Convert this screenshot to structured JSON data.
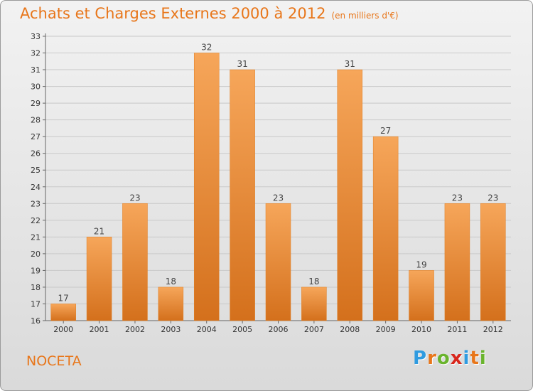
{
  "header": {
    "title": "Achats et Charges Externes 2000 à 2012",
    "unit": "(en milliers d'€)"
  },
  "footer": {
    "commune": "NOCETA",
    "logo_letters": [
      "P",
      "r",
      "o",
      "x",
      "i",
      "t",
      "i"
    ],
    "logo_colors": [
      "#2f9be0",
      "#e8761a",
      "#6ab42d",
      "#d8261c",
      "#2f9be0",
      "#e8761a",
      "#6ab42d"
    ]
  },
  "colors": {
    "accent": "#e8761a",
    "bar_top": "#f6a65a",
    "bar_bottom": "#d4701c",
    "grid": "#c9c9c9",
    "axis": "#666666"
  },
  "chart_data": {
    "type": "bar",
    "title": "Achats et Charges Externes 2000 à 2012",
    "subtitle": "(en milliers d'€)",
    "xlabel": "",
    "ylabel": "",
    "categories": [
      "2000",
      "2001",
      "2002",
      "2003",
      "2004",
      "2005",
      "2006",
      "2007",
      "2008",
      "2009",
      "2010",
      "2011",
      "2012"
    ],
    "values": [
      17,
      21,
      23,
      18,
      32,
      31,
      23,
      18,
      31,
      27,
      19,
      23,
      23
    ],
    "value_labels": [
      "17",
      "21",
      "23",
      "18",
      "32",
      "31",
      "23",
      "18",
      "31",
      "27",
      "19",
      "23",
      "23"
    ],
    "ylim": [
      16,
      33
    ],
    "yticks": [
      16,
      17,
      18,
      19,
      20,
      21,
      22,
      23,
      24,
      25,
      26,
      27,
      28,
      29,
      30,
      31,
      32,
      33
    ],
    "grid": true,
    "legend": "none"
  }
}
